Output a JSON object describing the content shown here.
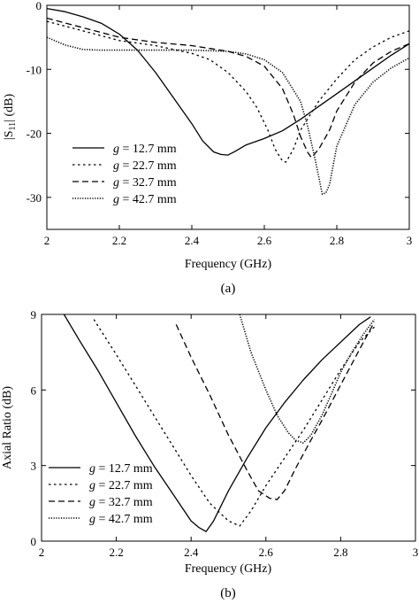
{
  "chart_data": [
    {
      "type": "line",
      "panel": "(a)",
      "caption": "(a)",
      "xlabel": "Frequency (GHz)",
      "ylabel": "|S11| (dB)",
      "xlim": [
        2,
        3
      ],
      "ylim": [
        -35,
        0
      ],
      "xticks": [
        2,
        2.2,
        2.4,
        2.6,
        2.8,
        3
      ],
      "yticks": [
        0,
        -10,
        -20,
        -30
      ],
      "grid": false,
      "legend_position": "bottom-left",
      "series": [
        {
          "name": "g = 12.7 mm",
          "label_italic": "g",
          "label_rest": " = 12.7 mm",
          "dash": "solid",
          "x": [
            2.0,
            2.05,
            2.1,
            2.15,
            2.2,
            2.25,
            2.3,
            2.35,
            2.4,
            2.43,
            2.46,
            2.48,
            2.5,
            2.52,
            2.55,
            2.6,
            2.65,
            2.7,
            2.75,
            2.8,
            2.85,
            2.9,
            2.95,
            3.0
          ],
          "y": [
            -0.5,
            -1.0,
            -1.8,
            -2.8,
            -4.5,
            -7.0,
            -10.5,
            -14.5,
            -18.5,
            -21.2,
            -22.9,
            -23.3,
            -23.4,
            -22.8,
            -21.8,
            -20.8,
            -19.6,
            -17.8,
            -15.8,
            -13.8,
            -11.8,
            -9.8,
            -7.8,
            -6.0
          ]
        },
        {
          "name": "g = 22.7 mm",
          "label_italic": "g",
          "label_rest": " = 22.7 mm",
          "dash": "fine",
          "x": [
            2.0,
            2.1,
            2.2,
            2.3,
            2.4,
            2.45,
            2.5,
            2.55,
            2.58,
            2.61,
            2.63,
            2.65,
            2.66,
            2.68,
            2.7,
            2.75,
            2.8,
            2.85,
            2.9,
            2.95,
            3.0
          ],
          "y": [
            -2.5,
            -4.0,
            -5.5,
            -6.3,
            -7.5,
            -8.5,
            -10.5,
            -13.5,
            -16.0,
            -19.5,
            -22.5,
            -24.3,
            -24.5,
            -22.5,
            -19.5,
            -15.0,
            -11.5,
            -8.5,
            -6.5,
            -5.0,
            -4.0
          ]
        },
        {
          "name": "g = 32.7 mm",
          "label_italic": "g",
          "label_rest": " = 32.7 mm",
          "dash": "medium",
          "x": [
            2.0,
            2.1,
            2.2,
            2.3,
            2.4,
            2.5,
            2.55,
            2.6,
            2.65,
            2.68,
            2.7,
            2.72,
            2.73,
            2.75,
            2.78,
            2.8,
            2.85,
            2.9,
            2.95,
            3.0
          ],
          "y": [
            -2.0,
            -3.5,
            -5.0,
            -5.8,
            -6.3,
            -7.2,
            -8.0,
            -9.5,
            -13.0,
            -17.0,
            -20.5,
            -23.0,
            -23.8,
            -22.5,
            -19.5,
            -16.5,
            -12.0,
            -9.0,
            -7.2,
            -6.0
          ]
        },
        {
          "name": "g = 42.7 mm",
          "label_italic": "g",
          "label_rest": " = 42.7 mm",
          "dash": "dotted",
          "x": [
            2.0,
            2.05,
            2.1,
            2.15,
            2.2,
            2.3,
            2.4,
            2.5,
            2.55,
            2.6,
            2.65,
            2.7,
            2.72,
            2.74,
            2.76,
            2.77,
            2.78,
            2.8,
            2.85,
            2.9,
            2.95,
            3.0
          ],
          "y": [
            -5.0,
            -6.2,
            -6.9,
            -7.0,
            -7.0,
            -7.0,
            -7.0,
            -7.2,
            -7.6,
            -8.5,
            -10.5,
            -15.0,
            -19.0,
            -24.0,
            -29.5,
            -29.3,
            -28.0,
            -22.0,
            -15.5,
            -12.0,
            -9.8,
            -8.2
          ]
        }
      ]
    },
    {
      "type": "line",
      "panel": "(b)",
      "caption": "(b)",
      "xlabel": "Frequency (GHz)",
      "ylabel": "Axial Ratio (dB)",
      "xlim": [
        2,
        3
      ],
      "ylim": [
        0,
        9
      ],
      "xticks": [
        2,
        2.2,
        2.4,
        2.6,
        2.8,
        3
      ],
      "yticks": [
        0,
        3,
        6,
        9
      ],
      "grid": false,
      "legend_position": "bottom-left",
      "series": [
        {
          "name": "g = 12.7 mm",
          "label_italic": "g",
          "label_rest": " = 12.7 mm",
          "dash": "solid",
          "x": [
            2.06,
            2.1,
            2.15,
            2.2,
            2.25,
            2.3,
            2.35,
            2.4,
            2.42,
            2.44,
            2.46,
            2.5,
            2.55,
            2.6,
            2.65,
            2.7,
            2.75,
            2.8,
            2.85,
            2.88
          ],
          "y": [
            9.0,
            8.0,
            6.8,
            5.5,
            4.2,
            3.0,
            1.9,
            0.8,
            0.55,
            0.38,
            0.8,
            2.0,
            3.3,
            4.5,
            5.5,
            6.4,
            7.2,
            7.9,
            8.6,
            8.9
          ]
        },
        {
          "name": "g = 22.7 mm",
          "label_italic": "g",
          "label_rest": " = 22.7 mm",
          "dash": "fine",
          "x": [
            2.14,
            2.2,
            2.25,
            2.3,
            2.35,
            2.4,
            2.45,
            2.5,
            2.53,
            2.56,
            2.6,
            2.65,
            2.7,
            2.75,
            2.8,
            2.85,
            2.89
          ],
          "y": [
            8.8,
            7.4,
            6.2,
            5.0,
            3.8,
            2.6,
            1.5,
            0.8,
            0.6,
            1.2,
            2.2,
            3.3,
            4.4,
            5.6,
            6.8,
            7.9,
            8.5
          ]
        },
        {
          "name": "g = 32.7 mm",
          "label_italic": "g",
          "label_rest": " = 32.7 mm",
          "dash": "medium",
          "x": [
            2.36,
            2.4,
            2.45,
            2.5,
            2.55,
            2.58,
            2.61,
            2.63,
            2.65,
            2.68,
            2.72,
            2.75,
            2.8,
            2.85,
            2.89
          ],
          "y": [
            8.6,
            7.3,
            5.8,
            4.2,
            2.8,
            2.0,
            1.7,
            1.65,
            2.0,
            2.9,
            4.0,
            4.8,
            6.2,
            7.6,
            8.7
          ]
        },
        {
          "name": "g = 42.7 mm",
          "label_italic": "g",
          "label_rest": " = 42.7 mm",
          "dash": "dotted",
          "x": [
            2.53,
            2.56,
            2.6,
            2.63,
            2.66,
            2.68,
            2.7,
            2.72,
            2.75,
            2.78,
            2.8,
            2.83,
            2.86,
            2.89
          ],
          "y": [
            9.0,
            7.5,
            6.0,
            5.0,
            4.3,
            4.0,
            3.9,
            4.2,
            5.0,
            6.0,
            6.7,
            7.5,
            8.2,
            8.8
          ]
        }
      ]
    }
  ]
}
